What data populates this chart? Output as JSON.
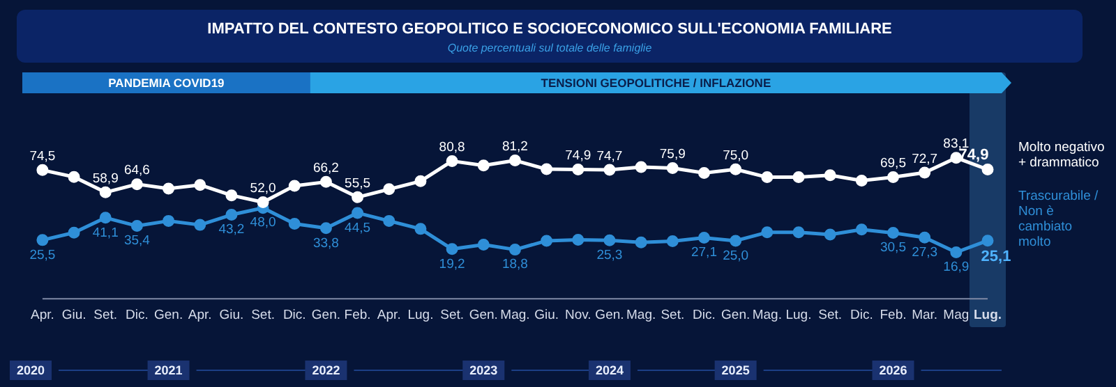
{
  "chart_data": {
    "type": "line",
    "title": "IMPATTO DEL CONTESTO GEOPOLITICO E SOCIOECONOMICO SULL'ECONOMIA FAMILIARE",
    "subtitle": "Quote percentuali sul totale delle famiglie",
    "categories": [
      "Apr.",
      "Giu.",
      "Set.",
      "Dic.",
      "Gen.",
      "Apr.",
      "Giu.",
      "Set.",
      "Dic.",
      "Gen.",
      "Feb.",
      "Apr.",
      "Lug.",
      "Set.",
      "Gen.",
      "Mag.",
      "Giu.",
      "Nov.",
      "Gen.",
      "Mag.",
      "Set.",
      "Dic.",
      "Gen.",
      "Mag.",
      "Lug.",
      "Set.",
      "Dic.",
      "Feb.",
      "Mar.",
      "Mag",
      "Lug."
    ],
    "series": [
      {
        "name": "Molto negativo + drammatico",
        "color": "#ffffff",
        "values": [
          74.5,
          69.7,
          58.9,
          64.6,
          61.5,
          64.1,
          56.8,
          52.0,
          63.5,
          66.2,
          55.5,
          61.1,
          66.7,
          80.8,
          77.7,
          81.2,
          75.1,
          74.9,
          74.7,
          76.6,
          75.9,
          72.5,
          75.0,
          69.5,
          69.5,
          70.9,
          67.1,
          69.5,
          72.7,
          83.1,
          74.9
        ],
        "value_labels": [
          "74,5",
          null,
          "58,9",
          "64,6",
          null,
          null,
          null,
          "52,0",
          null,
          "66,2",
          "55,5",
          null,
          null,
          "80,8",
          null,
          "81,2",
          null,
          "74,9",
          "74,7",
          null,
          "75,9",
          null,
          "75,0",
          null,
          null,
          null,
          null,
          "69,5",
          "72,7",
          "83,1",
          "74,9"
        ]
      },
      {
        "name": "Trascurabile / Non è cambiato molto",
        "color": "#2f8fd8",
        "values": [
          25.5,
          30.7,
          41.1,
          35.4,
          38.9,
          36.1,
          43.2,
          48.0,
          36.9,
          33.8,
          44.5,
          38.9,
          33.3,
          19.2,
          22.3,
          18.8,
          25.0,
          25.7,
          25.3,
          23.8,
          24.7,
          27.1,
          25.0,
          30.9,
          30.9,
          29.3,
          32.9,
          30.5,
          27.3,
          16.9,
          25.1
        ],
        "value_labels": [
          "25,5",
          null,
          "41,1",
          "35,4",
          null,
          null,
          "43,2",
          "48,0",
          null,
          "33,8",
          "44,5",
          null,
          null,
          "19,2",
          null,
          "18,8",
          null,
          null,
          "25,3",
          null,
          null,
          "27,1",
          "25,0",
          null,
          null,
          null,
          null,
          "30,5",
          "27,3",
          "16,9",
          "25,1"
        ]
      }
    ],
    "tick_labels": "x",
    "marker": "circle",
    "grid": false,
    "legend": false,
    "annotations": [
      "PANDEMIA COVID19",
      "TENSIONI GEOPOLITICHE / INFLAZIONE",
      "2020",
      "2021",
      "2022",
      "2023",
      "2024",
      "2025",
      "2026"
    ]
  }
}
